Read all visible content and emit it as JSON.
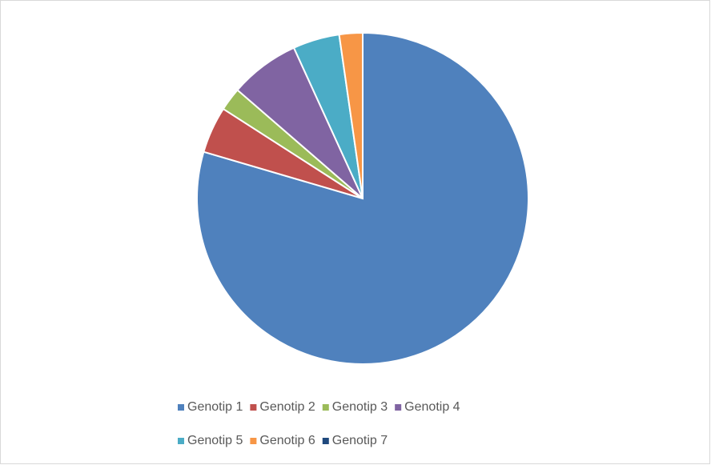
{
  "chart_data": {
    "type": "pie",
    "categories": [
      "Genotip 1",
      "Genotip 2",
      "Genotip 3",
      "Genotip 4",
      "Genotip 5",
      "Genotip 6",
      "Genotip 7"
    ],
    "values": [
      35,
      2,
      1,
      3,
      2,
      1,
      0
    ],
    "colors": [
      "#4f81bd",
      "#c0504d",
      "#9bbb59",
      "#8064a2",
      "#4bacc6",
      "#f79646",
      "#1f497d"
    ],
    "legend": "bottom"
  }
}
